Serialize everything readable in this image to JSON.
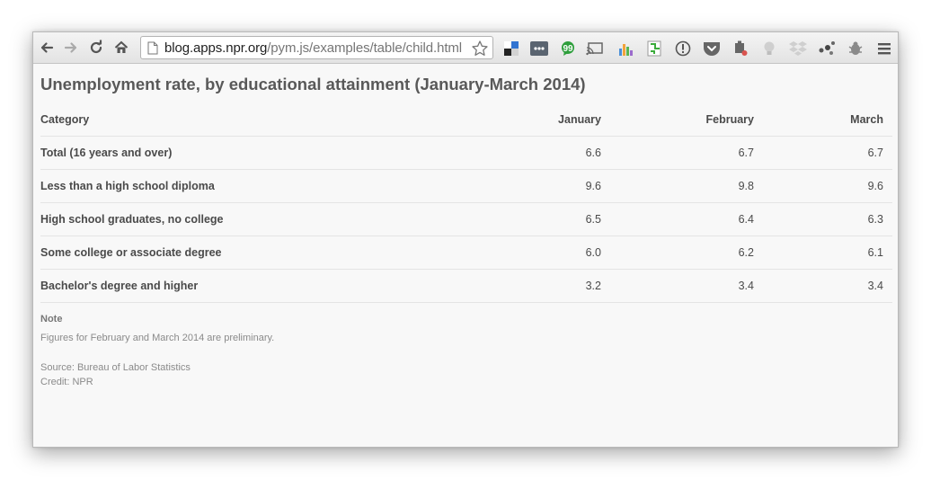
{
  "browser": {
    "url_host": "blog.apps.npr.org",
    "url_path": "/pym.js/examples/table/child.html",
    "nav_icons": [
      "back-icon",
      "forward-icon",
      "reload-icon",
      "home-icon"
    ],
    "extension_icons": [
      "delicious-icon",
      "more-icon",
      "evernote-icon",
      "cast-icon",
      "analytics-icon",
      "diff-icon",
      "info-icon",
      "pocket-icon",
      "stamp-icon",
      "bulb-icon",
      "dropbox-icon",
      "dots-icon",
      "bug-icon",
      "menu-icon"
    ]
  },
  "page": {
    "title": "Unemployment rate, by educational attainment (January-March 2014)",
    "table": {
      "headers": [
        "Category",
        "January",
        "February",
        "March"
      ],
      "rows": [
        {
          "category": "Total (16 years and over)",
          "jan": "6.6",
          "feb": "6.7",
          "mar": "6.7"
        },
        {
          "category": "Less than a high school diploma",
          "jan": "9.6",
          "feb": "9.8",
          "mar": "9.6"
        },
        {
          "category": "High school graduates, no college",
          "jan": "6.5",
          "feb": "6.4",
          "mar": "6.3"
        },
        {
          "category": "Some college or associate degree",
          "jan": "6.0",
          "feb": "6.2",
          "mar": "6.1"
        },
        {
          "category": "Bachelor's degree and higher",
          "jan": "3.2",
          "feb": "3.4",
          "mar": "3.4"
        }
      ]
    },
    "note_label": "Note",
    "note_text": "Figures for February and March 2014 are preliminary.",
    "source": "Source: Bureau of Labor Statistics",
    "credit": "Credit: NPR"
  }
}
